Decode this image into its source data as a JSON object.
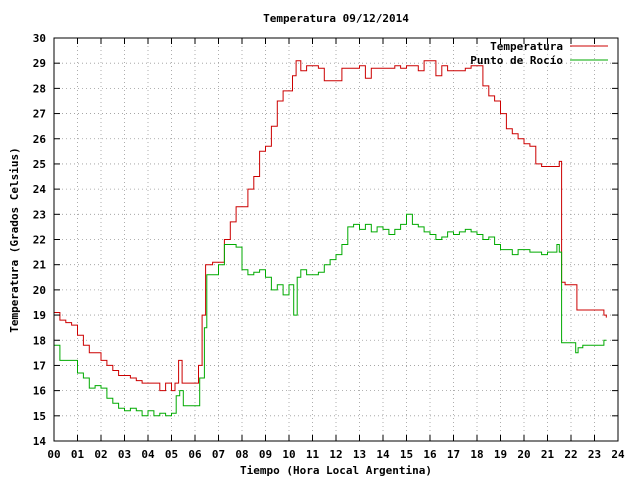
{
  "chart_data": {
    "type": "line",
    "title": "Temperatura 09/12/2014",
    "xlabel": "Tiempo (Hora Local Argentina)",
    "ylabel": "Temperatura (Grados Celsius)",
    "xlim": [
      0,
      24
    ],
    "ylim": [
      14,
      30
    ],
    "grid": true,
    "legend_position": "top-right",
    "x_ticks": [
      "00",
      "01",
      "02",
      "03",
      "04",
      "05",
      "06",
      "07",
      "08",
      "09",
      "10",
      "11",
      "12",
      "13",
      "14",
      "15",
      "16",
      "17",
      "18",
      "19",
      "20",
      "21",
      "22",
      "23",
      "24"
    ],
    "y_ticks": [
      "14",
      "15",
      "16",
      "17",
      "18",
      "19",
      "20",
      "21",
      "22",
      "23",
      "24",
      "25",
      "26",
      "27",
      "28",
      "29",
      "30"
    ],
    "series": [
      {
        "name": "Temperatura",
        "color": "#cc0000",
        "points": [
          [
            0.0,
            19.1
          ],
          [
            0.25,
            18.8
          ],
          [
            0.5,
            18.7
          ],
          [
            0.75,
            18.6
          ],
          [
            1.0,
            18.2
          ],
          [
            1.25,
            17.8
          ],
          [
            1.5,
            17.5
          ],
          [
            1.75,
            17.5
          ],
          [
            2.0,
            17.2
          ],
          [
            2.25,
            17.0
          ],
          [
            2.5,
            16.8
          ],
          [
            2.75,
            16.6
          ],
          [
            3.0,
            16.6
          ],
          [
            3.25,
            16.5
          ],
          [
            3.5,
            16.4
          ],
          [
            3.75,
            16.3
          ],
          [
            4.0,
            16.3
          ],
          [
            4.25,
            16.3
          ],
          [
            4.5,
            16.0
          ],
          [
            4.75,
            16.3
          ],
          [
            5.0,
            16.0
          ],
          [
            5.15,
            16.3
          ],
          [
            5.3,
            17.2
          ],
          [
            5.45,
            16.3
          ],
          [
            5.75,
            16.3
          ],
          [
            6.0,
            16.3
          ],
          [
            6.15,
            17.0
          ],
          [
            6.3,
            19.0
          ],
          [
            6.45,
            21.0
          ],
          [
            6.75,
            21.1
          ],
          [
            7.0,
            21.1
          ],
          [
            7.25,
            22.0
          ],
          [
            7.5,
            22.7
          ],
          [
            7.75,
            23.3
          ],
          [
            8.0,
            23.3
          ],
          [
            8.25,
            24.0
          ],
          [
            8.5,
            24.5
          ],
          [
            8.75,
            25.5
          ],
          [
            9.0,
            25.7
          ],
          [
            9.25,
            26.5
          ],
          [
            9.5,
            27.5
          ],
          [
            9.75,
            27.9
          ],
          [
            10.0,
            27.9
          ],
          [
            10.15,
            28.5
          ],
          [
            10.3,
            29.1
          ],
          [
            10.5,
            28.7
          ],
          [
            10.75,
            28.9
          ],
          [
            11.0,
            28.9
          ],
          [
            11.25,
            28.8
          ],
          [
            11.5,
            28.3
          ],
          [
            11.75,
            28.3
          ],
          [
            12.0,
            28.3
          ],
          [
            12.25,
            28.8
          ],
          [
            12.5,
            28.8
          ],
          [
            12.75,
            28.8
          ],
          [
            13.0,
            28.9
          ],
          [
            13.25,
            28.4
          ],
          [
            13.5,
            28.8
          ],
          [
            13.75,
            28.8
          ],
          [
            14.0,
            28.8
          ],
          [
            14.25,
            28.8
          ],
          [
            14.5,
            28.9
          ],
          [
            14.75,
            28.8
          ],
          [
            15.0,
            28.9
          ],
          [
            15.25,
            28.9
          ],
          [
            15.5,
            28.7
          ],
          [
            15.75,
            29.1
          ],
          [
            16.0,
            29.1
          ],
          [
            16.25,
            28.5
          ],
          [
            16.5,
            28.9
          ],
          [
            16.75,
            28.7
          ],
          [
            17.0,
            28.7
          ],
          [
            17.25,
            28.7
          ],
          [
            17.5,
            28.8
          ],
          [
            17.75,
            28.9
          ],
          [
            18.0,
            28.9
          ],
          [
            18.25,
            28.1
          ],
          [
            18.5,
            27.7
          ],
          [
            18.75,
            27.5
          ],
          [
            19.0,
            27.0
          ],
          [
            19.25,
            26.4
          ],
          [
            19.5,
            26.2
          ],
          [
            19.75,
            26.0
          ],
          [
            20.0,
            25.8
          ],
          [
            20.25,
            25.7
          ],
          [
            20.5,
            25.0
          ],
          [
            20.75,
            24.9
          ],
          [
            21.0,
            24.9
          ],
          [
            21.25,
            24.9
          ],
          [
            21.5,
            25.1
          ],
          [
            21.6,
            20.3
          ],
          [
            21.75,
            20.2
          ],
          [
            22.0,
            20.2
          ],
          [
            22.25,
            19.2
          ],
          [
            22.5,
            19.2
          ],
          [
            22.75,
            19.2
          ],
          [
            23.0,
            19.2
          ],
          [
            23.25,
            19.2
          ],
          [
            23.4,
            19.0
          ],
          [
            23.5,
            18.9
          ]
        ]
      },
      {
        "name": "Punto de Rocío",
        "color": "#00aa00",
        "points": [
          [
            0.0,
            17.8
          ],
          [
            0.25,
            17.2
          ],
          [
            0.5,
            17.2
          ],
          [
            0.75,
            17.2
          ],
          [
            1.0,
            16.7
          ],
          [
            1.25,
            16.5
          ],
          [
            1.5,
            16.1
          ],
          [
            1.75,
            16.2
          ],
          [
            2.0,
            16.1
          ],
          [
            2.25,
            15.7
          ],
          [
            2.5,
            15.5
          ],
          [
            2.75,
            15.3
          ],
          [
            3.0,
            15.2
          ],
          [
            3.25,
            15.3
          ],
          [
            3.5,
            15.2
          ],
          [
            3.75,
            15.0
          ],
          [
            4.0,
            15.2
          ],
          [
            4.25,
            15.0
          ],
          [
            4.5,
            15.1
          ],
          [
            4.75,
            15.0
          ],
          [
            5.0,
            15.1
          ],
          [
            5.2,
            15.8
          ],
          [
            5.35,
            16.0
          ],
          [
            5.5,
            15.4
          ],
          [
            5.75,
            15.4
          ],
          [
            6.0,
            15.4
          ],
          [
            6.2,
            16.5
          ],
          [
            6.4,
            18.5
          ],
          [
            6.5,
            20.6
          ],
          [
            6.75,
            20.6
          ],
          [
            7.0,
            21.0
          ],
          [
            7.25,
            21.8
          ],
          [
            7.5,
            21.8
          ],
          [
            7.75,
            21.7
          ],
          [
            8.0,
            20.8
          ],
          [
            8.25,
            20.6
          ],
          [
            8.5,
            20.7
          ],
          [
            8.75,
            20.8
          ],
          [
            9.0,
            20.5
          ],
          [
            9.25,
            20.0
          ],
          [
            9.5,
            20.2
          ],
          [
            9.75,
            19.8
          ],
          [
            10.0,
            20.2
          ],
          [
            10.2,
            19.0
          ],
          [
            10.35,
            20.5
          ],
          [
            10.5,
            20.8
          ],
          [
            10.75,
            20.6
          ],
          [
            11.0,
            20.6
          ],
          [
            11.25,
            20.7
          ],
          [
            11.5,
            21.0
          ],
          [
            11.75,
            21.2
          ],
          [
            12.0,
            21.4
          ],
          [
            12.25,
            21.8
          ],
          [
            12.5,
            22.5
          ],
          [
            12.75,
            22.6
          ],
          [
            13.0,
            22.4
          ],
          [
            13.25,
            22.6
          ],
          [
            13.5,
            22.3
          ],
          [
            13.75,
            22.5
          ],
          [
            14.0,
            22.4
          ],
          [
            14.25,
            22.2
          ],
          [
            14.5,
            22.4
          ],
          [
            14.75,
            22.6
          ],
          [
            15.0,
            23.0
          ],
          [
            15.25,
            22.6
          ],
          [
            15.5,
            22.5
          ],
          [
            15.75,
            22.3
          ],
          [
            16.0,
            22.2
          ],
          [
            16.25,
            22.0
          ],
          [
            16.5,
            22.1
          ],
          [
            16.75,
            22.3
          ],
          [
            17.0,
            22.2
          ],
          [
            17.25,
            22.3
          ],
          [
            17.5,
            22.4
          ],
          [
            17.75,
            22.3
          ],
          [
            18.0,
            22.2
          ],
          [
            18.25,
            22.0
          ],
          [
            18.5,
            22.1
          ],
          [
            18.75,
            21.8
          ],
          [
            19.0,
            21.6
          ],
          [
            19.25,
            21.6
          ],
          [
            19.5,
            21.4
          ],
          [
            19.75,
            21.6
          ],
          [
            20.0,
            21.6
          ],
          [
            20.25,
            21.5
          ],
          [
            20.5,
            21.5
          ],
          [
            20.75,
            21.4
          ],
          [
            21.0,
            21.5
          ],
          [
            21.25,
            21.5
          ],
          [
            21.4,
            21.8
          ],
          [
            21.5,
            21.5
          ],
          [
            21.6,
            17.9
          ],
          [
            21.75,
            17.9
          ],
          [
            22.0,
            17.9
          ],
          [
            22.2,
            17.5
          ],
          [
            22.3,
            17.7
          ],
          [
            22.5,
            17.8
          ],
          [
            22.75,
            17.8
          ],
          [
            23.0,
            17.8
          ],
          [
            23.25,
            17.8
          ],
          [
            23.4,
            18.0
          ],
          [
            23.5,
            18.0
          ]
        ]
      }
    ]
  }
}
